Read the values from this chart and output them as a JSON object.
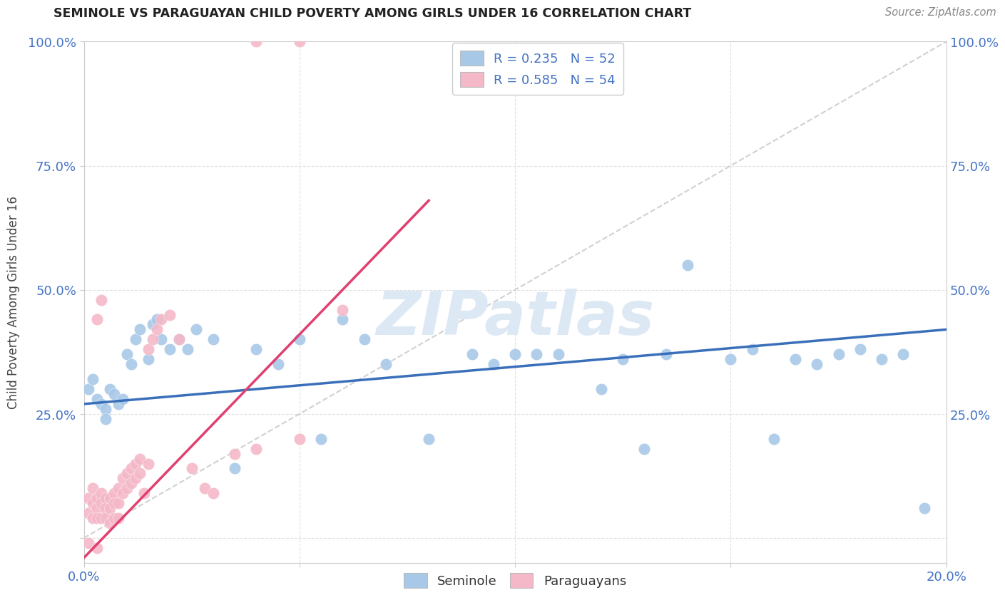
{
  "title": "SEMINOLE VS PARAGUAYAN CHILD POVERTY AMONG GIRLS UNDER 16 CORRELATION CHART",
  "source": "Source: ZipAtlas.com",
  "ylabel": "Child Poverty Among Girls Under 16",
  "legend1_label": "R = 0.235   N = 52",
  "legend2_label": "R = 0.585   N = 54",
  "legend_bottom": [
    "Seminole",
    "Paraguayans"
  ],
  "seminole_color": "#a8c8e8",
  "paraguayan_color": "#f4b8c8",
  "seminole_line_color": "#3a6fba",
  "paraguayan_line_color": "#e04070",
  "ref_line_color": "#cccccc",
  "watermark": "ZIPatlas",
  "watermark_color": "#dce8f4",
  "grid_color": "#e0e0e0",
  "tick_color": "#4472c4",
  "title_color": "#222222",
  "source_color": "#888888",
  "xlim": [
    0,
    0.2
  ],
  "ylim": [
    -0.05,
    1.0
  ],
  "xticks": [
    0,
    0.05,
    0.1,
    0.15,
    0.2
  ],
  "xticklabels": [
    "0.0%",
    "",
    "",
    "",
    "20.0%"
  ],
  "yticks_left": [
    0.0,
    0.25,
    0.5,
    0.75,
    1.0
  ],
  "yticklabels_left": [
    "",
    "25.0%",
    "50.0%",
    "75.0%",
    "100.0%"
  ],
  "yticks_right": [
    0.25,
    0.5,
    0.75,
    1.0
  ],
  "yticklabels_right": [
    "25.0%",
    "50.0%",
    "75.0%",
    "100.0%"
  ],
  "blue_line": [
    [
      0.0,
      0.27
    ],
    [
      0.2,
      0.42
    ]
  ],
  "pink_line": [
    [
      0.0,
      -0.04
    ],
    [
      0.08,
      0.68
    ]
  ],
  "ref_line": [
    [
      0.0,
      0.0
    ],
    [
      0.2,
      1.0
    ]
  ],
  "seminole_x": [
    0.001,
    0.002,
    0.003,
    0.004,
    0.005,
    0.005,
    0.006,
    0.007,
    0.008,
    0.009,
    0.01,
    0.011,
    0.012,
    0.013,
    0.015,
    0.016,
    0.017,
    0.018,
    0.02,
    0.022,
    0.024,
    0.026,
    0.03,
    0.035,
    0.04,
    0.045,
    0.05,
    0.055,
    0.06,
    0.065,
    0.07,
    0.08,
    0.09,
    0.095,
    0.1,
    0.105,
    0.11,
    0.12,
    0.125,
    0.13,
    0.135,
    0.14,
    0.15,
    0.155,
    0.16,
    0.165,
    0.17,
    0.175,
    0.18,
    0.185,
    0.19,
    0.195
  ],
  "seminole_y": [
    0.3,
    0.32,
    0.28,
    0.27,
    0.26,
    0.24,
    0.3,
    0.29,
    0.27,
    0.28,
    0.37,
    0.35,
    0.4,
    0.42,
    0.36,
    0.43,
    0.44,
    0.4,
    0.38,
    0.4,
    0.38,
    0.42,
    0.4,
    0.14,
    0.38,
    0.35,
    0.4,
    0.2,
    0.44,
    0.4,
    0.35,
    0.2,
    0.37,
    0.35,
    0.37,
    0.37,
    0.37,
    0.3,
    0.36,
    0.18,
    0.37,
    0.55,
    0.36,
    0.38,
    0.2,
    0.36,
    0.35,
    0.37,
    0.38,
    0.36,
    0.37,
    0.06
  ],
  "paraguayan_x": [
    0.001,
    0.001,
    0.001,
    0.002,
    0.002,
    0.002,
    0.003,
    0.003,
    0.003,
    0.003,
    0.004,
    0.004,
    0.004,
    0.005,
    0.005,
    0.005,
    0.006,
    0.006,
    0.006,
    0.007,
    0.007,
    0.007,
    0.008,
    0.008,
    0.008,
    0.009,
    0.009,
    0.01,
    0.01,
    0.011,
    0.011,
    0.012,
    0.012,
    0.013,
    0.013,
    0.014,
    0.015,
    0.015,
    0.016,
    0.017,
    0.018,
    0.02,
    0.022,
    0.025,
    0.028,
    0.03,
    0.035,
    0.04,
    0.05,
    0.06,
    0.003,
    0.004,
    0.04,
    0.05
  ],
  "paraguayan_y": [
    0.08,
    0.05,
    -0.01,
    0.1,
    0.07,
    0.04,
    0.08,
    0.06,
    0.04,
    -0.02,
    0.09,
    0.07,
    0.04,
    0.08,
    0.06,
    0.04,
    0.08,
    0.06,
    0.03,
    0.09,
    0.07,
    0.04,
    0.1,
    0.07,
    0.04,
    0.12,
    0.09,
    0.13,
    0.1,
    0.14,
    0.11,
    0.15,
    0.12,
    0.16,
    0.13,
    0.09,
    0.38,
    0.15,
    0.4,
    0.42,
    0.44,
    0.45,
    0.4,
    0.14,
    0.1,
    0.09,
    0.17,
    1.0,
    1.0,
    0.46,
    0.44,
    0.48,
    0.18,
    0.2
  ]
}
